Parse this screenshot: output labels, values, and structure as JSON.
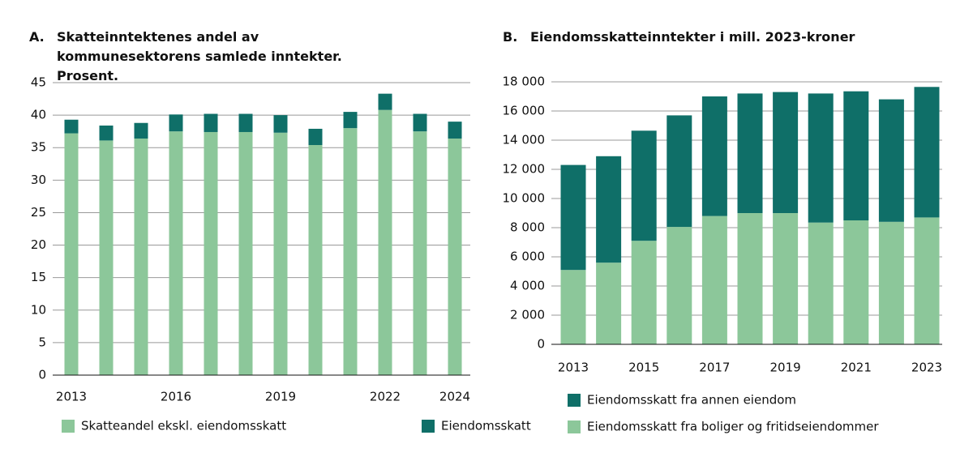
{
  "chart_data": [
    {
      "type": "bar",
      "stacked": true,
      "label": "A.",
      "title": "Skatteinntektenes andel av kommunesektorens samlede inntekter. Prosent.",
      "categories": [
        "2013",
        null,
        null,
        "2016",
        null,
        null,
        "2019",
        null,
        null,
        "2022",
        null,
        "2024"
      ],
      "series": [
        {
          "name": "Skatteandel ekskl. eiendomsskatt",
          "color": "#8cc79a",
          "values": [
            37.2,
            36.1,
            36.4,
            37.5,
            37.4,
            37.4,
            37.3,
            35.4,
            38.0,
            40.8,
            37.5,
            36.4
          ]
        },
        {
          "name": "Eiendomsskatt",
          "color": "#0f6f68",
          "values": [
            2.1,
            2.3,
            2.4,
            2.6,
            2.8,
            2.8,
            2.7,
            2.5,
            2.5,
            2.5,
            2.7,
            2.6
          ]
        }
      ],
      "ylim": [
        0,
        45
      ],
      "yticks": [
        0,
        5,
        10,
        15,
        20,
        25,
        30,
        35,
        40,
        45
      ],
      "grid": true,
      "legend": "bottom"
    },
    {
      "type": "bar",
      "stacked": true,
      "label": "B.",
      "title": "Eiendomsskatteinntekter i mill. 2023-kroner",
      "categories": [
        "2013",
        null,
        "2015",
        null,
        "2017",
        null,
        "2019",
        null,
        "2021",
        null,
        "2023"
      ],
      "series": [
        {
          "name": "Eiendomsskatt fra boliger og fritidseiendommer",
          "color": "#8cc79a",
          "values": [
            5100,
            5600,
            7100,
            8050,
            8800,
            9000,
            9000,
            8350,
            8500,
            8400,
            8700
          ]
        },
        {
          "name": "Eiendomsskatt fra annen eiendom",
          "color": "#0f6f68",
          "values": [
            7200,
            7300,
            7550,
            7650,
            8200,
            8200,
            8300,
            8850,
            8850,
            8400,
            8950
          ]
        }
      ],
      "ylim": [
        0,
        18000
      ],
      "yticks": [
        0,
        {
          "value": 2000,
          "label": "2 000"
        },
        {
          "value": 4000,
          "label": "4 000"
        },
        {
          "value": 6000,
          "label": "6 000"
        },
        {
          "value": 8000,
          "label": "8 000"
        },
        {
          "value": 10000,
          "label": "10 000"
        },
        {
          "value": 12000,
          "label": "12 000"
        },
        {
          "value": 14000,
          "label": "14 000"
        },
        {
          "value": 16000,
          "label": "16 000"
        },
        {
          "value": 18000,
          "label": "18 000"
        }
      ],
      "grid": true,
      "legend": "bottom"
    }
  ]
}
